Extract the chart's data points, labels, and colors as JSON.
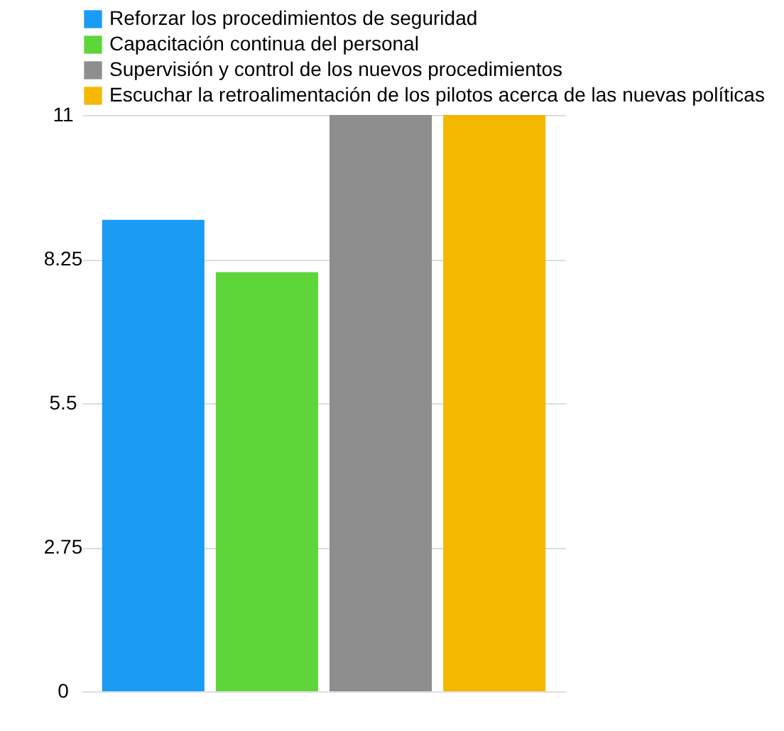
{
  "chart_data": {
    "type": "bar",
    "categories": [
      null
    ],
    "series": [
      {
        "name": "Reforzar los procedimientos de seguridad",
        "color": "#1a9cf5",
        "values": [
          9
        ]
      },
      {
        "name": "Capacitación continua del personal",
        "color": "#5ed63a",
        "values": [
          8
        ]
      },
      {
        "name": "Supervisión y control de los nuevos procedimientos",
        "color": "#8e8e8e",
        "values": [
          11
        ]
      },
      {
        "name": "Escuchar la retroalimentación de los pilotos acerca de las nuevas políticas",
        "color": "#f5b800",
        "values": [
          11
        ]
      }
    ],
    "ylim": [
      0,
      11
    ],
    "yticks": [
      0,
      2.75,
      5.5,
      8.25,
      11
    ],
    "grid": "y",
    "legend": "top"
  }
}
